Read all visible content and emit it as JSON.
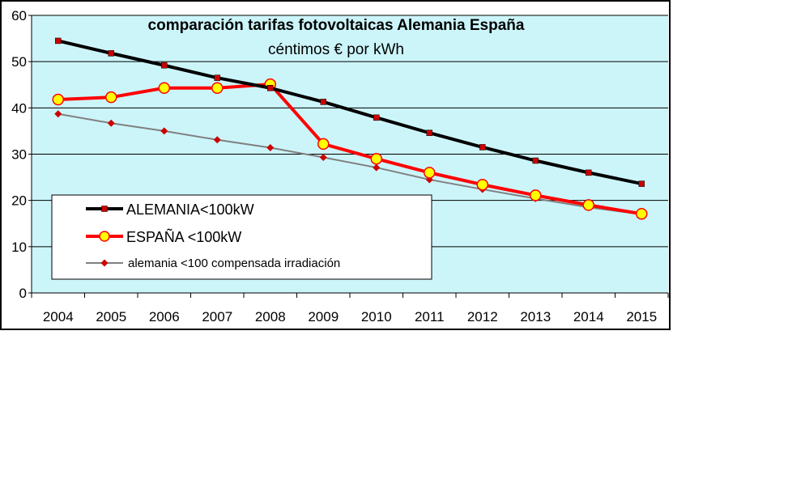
{
  "chart_data": {
    "type": "line",
    "title": "comparación tarifas fotovoltaicas Alemania España",
    "subtitle": "céntimos € por kWh",
    "categories": [
      "2004",
      "2005",
      "2006",
      "2007",
      "2008",
      "2009",
      "2010",
      "2011",
      "2012",
      "2013",
      "2014",
      "2015"
    ],
    "ylim": [
      0,
      60
    ],
    "yticks": [
      0,
      10,
      20,
      30,
      40,
      50,
      60
    ],
    "grid": true,
    "legend_position": "bottom-left",
    "plot_background": "#ccf5fa",
    "series": [
      {
        "name": "ALEMANIA<100kW",
        "line_color": "#000000",
        "marker_color": "#cc0000",
        "marker": "square",
        "values": [
          54.5,
          51.8,
          49.2,
          46.5,
          44.3,
          41.3,
          37.9,
          34.6,
          31.5,
          28.6,
          26.0,
          23.6
        ]
      },
      {
        "name": "ESPAÑA <100kW",
        "line_color": "#ff0000",
        "marker_color": "#ffff00",
        "marker": "circle",
        "values": [
          41.8,
          42.3,
          44.3,
          44.3,
          45.1,
          32.2,
          29.0,
          26.0,
          23.4,
          21.1,
          19.0,
          17.1
        ]
      },
      {
        "name": "alemania <100 compensada irradiación",
        "line_color": "#808080",
        "marker_color": "#cc0000",
        "marker": "diamond",
        "values": [
          38.7,
          36.7,
          35.0,
          33.1,
          31.4,
          29.3,
          27.1,
          24.5,
          22.4,
          20.4,
          18.5,
          17.0
        ]
      }
    ]
  }
}
